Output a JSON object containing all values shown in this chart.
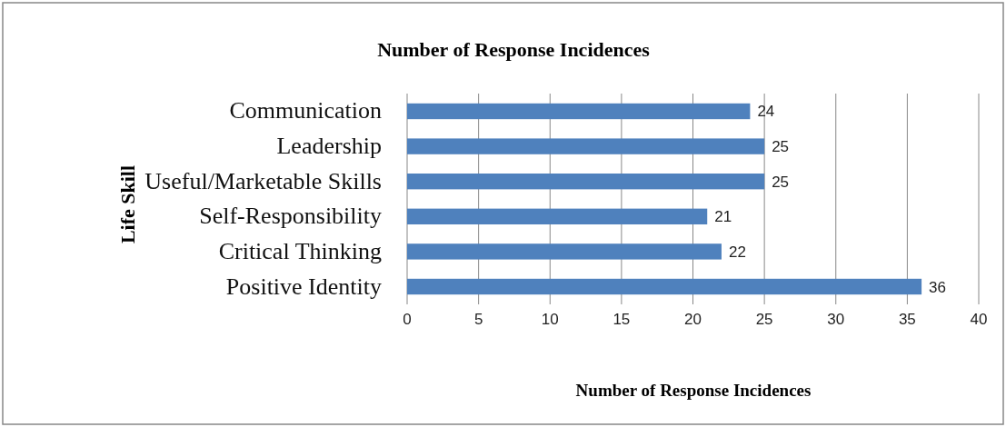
{
  "chart_data": {
    "type": "bar",
    "orientation": "horizontal",
    "title": "Number of Response Incidences",
    "xlabel": "Number of Response Incidences",
    "ylabel": "Life Skill",
    "categories": [
      "Communication",
      "Leadership",
      "Useful/Marketable Skills",
      "Self-Responsibility",
      "Critical Thinking",
      "Positive Identity"
    ],
    "values": [
      24,
      25,
      25,
      21,
      22,
      36
    ],
    "color": "#4f81bd",
    "data_labels": true,
    "xlim": [
      0,
      40
    ],
    "xticks": [
      0,
      5,
      10,
      15,
      20,
      25,
      30,
      35,
      40
    ],
    "grid": "x"
  }
}
